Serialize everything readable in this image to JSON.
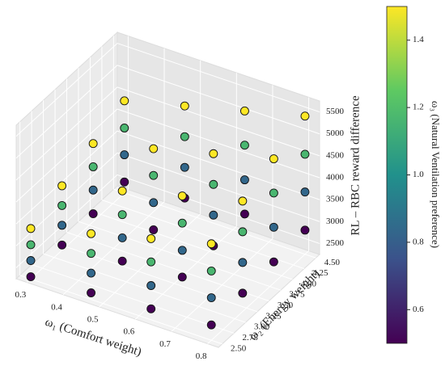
{
  "chart_data": {
    "type": "scatter3d",
    "x_label": "ω₁ (Comfort weight)",
    "y_label": "ω₂ (Energy weight)",
    "z_label": "RL – RBC reward difference",
    "colorbar_label": "ω₃ (Natural Ventilation preference)",
    "xlim": [
      0.27,
      0.83
    ],
    "ylim": [
      2.42,
      4.58
    ],
    "zlim": [
      2250,
      5750
    ],
    "clim": [
      0.5,
      1.5
    ],
    "xticks": [
      0.3,
      0.4,
      0.5,
      0.6,
      0.7,
      0.8
    ],
    "yticks": [
      {
        "value": 2.5,
        "label": "2.50"
      },
      2.75,
      {
        "value": 3.0,
        "label": "3.00"
      },
      3.25,
      {
        "value": 3.5,
        "label": "3.50"
      },
      3.75,
      {
        "value": 4.0,
        "label": "4.00"
      },
      4.25,
      {
        "value": 4.5,
        "label": "4.50"
      }
    ],
    "zticks": [
      2500,
      3000,
      3500,
      4000,
      4500,
      5000,
      5500
    ],
    "cticks": [
      0.6,
      0.8,
      {
        "value": 1.0,
        "label": "1.0"
      },
      1.2,
      1.4
    ],
    "grid": true,
    "colormap": "viridis",
    "x": [
      0.3,
      0.3,
      0.3,
      0.3,
      0.3,
      0.3,
      0.3,
      0.3,
      0.3,
      0.3,
      0.3,
      0.3,
      0.3,
      0.3,
      0.3,
      0.3,
      0.467,
      0.467,
      0.467,
      0.467,
      0.467,
      0.467,
      0.467,
      0.467,
      0.467,
      0.467,
      0.467,
      0.467,
      0.467,
      0.467,
      0.467,
      0.467,
      0.633,
      0.633,
      0.633,
      0.633,
      0.633,
      0.633,
      0.633,
      0.633,
      0.633,
      0.633,
      0.633,
      0.633,
      0.633,
      0.633,
      0.633,
      0.633,
      0.8,
      0.8,
      0.8,
      0.8,
      0.8,
      0.8,
      0.8,
      0.8,
      0.8,
      0.8,
      0.8,
      0.8,
      0.8,
      0.8,
      0.8,
      0.8
    ],
    "y": [
      2.5,
      2.5,
      2.5,
      2.5,
      3.167,
      3.167,
      3.167,
      3.167,
      3.833,
      3.833,
      3.833,
      3.833,
      4.5,
      4.5,
      4.5,
      4.5,
      2.5,
      2.5,
      2.5,
      2.5,
      3.167,
      3.167,
      3.167,
      3.167,
      3.833,
      3.833,
      3.833,
      3.833,
      4.5,
      4.5,
      4.5,
      4.5,
      2.5,
      2.5,
      2.5,
      2.5,
      3.167,
      3.167,
      3.167,
      3.167,
      3.833,
      3.833,
      3.833,
      3.833,
      4.5,
      4.5,
      4.5,
      4.5,
      2.5,
      2.5,
      2.5,
      2.5,
      3.167,
      3.167,
      3.167,
      3.167,
      3.833,
      3.833,
      3.833,
      3.833,
      4.5,
      4.5,
      4.5,
      4.5
    ],
    "z": [
      2300,
      2670,
      3030,
      3400,
      2370,
      2820,
      3270,
      3720,
      2430,
      2970,
      3500,
      4030,
      2500,
      3120,
      3730,
      4350,
      2400,
      2850,
      3300,
      3750,
      2470,
      3000,
      3530,
      4070,
      2530,
      3150,
      3770,
      4380,
      2600,
      3300,
      4000,
      4700,
      2500,
      3030,
      3570,
      4100,
      2570,
      3180,
      3800,
      4420,
      2630,
      3330,
      4030,
      4730,
      2700,
      3480,
      4270,
      5050,
      2600,
      3220,
      3830,
      4450,
      2670,
      3370,
      4070,
      4770,
      2730,
      3520,
      4300,
      5080,
      2800,
      3670,
      4530,
      5400
    ],
    "c": [
      0.5,
      0.833,
      1.167,
      1.5,
      0.5,
      0.833,
      1.167,
      1.5,
      0.5,
      0.833,
      1.167,
      1.5,
      0.5,
      0.833,
      1.167,
      1.5,
      0.5,
      0.833,
      1.167,
      1.5,
      0.5,
      0.833,
      1.167,
      1.5,
      0.5,
      0.833,
      1.167,
      1.5,
      0.5,
      0.833,
      1.167,
      1.5,
      0.5,
      0.833,
      1.167,
      1.5,
      0.5,
      0.833,
      1.167,
      1.5,
      0.5,
      0.833,
      1.167,
      1.5,
      0.5,
      0.833,
      1.167,
      1.5,
      0.5,
      0.833,
      1.167,
      1.5,
      0.5,
      0.833,
      1.167,
      1.5,
      0.5,
      0.833,
      1.167,
      1.5,
      0.5,
      0.833,
      1.167,
      1.5
    ]
  }
}
